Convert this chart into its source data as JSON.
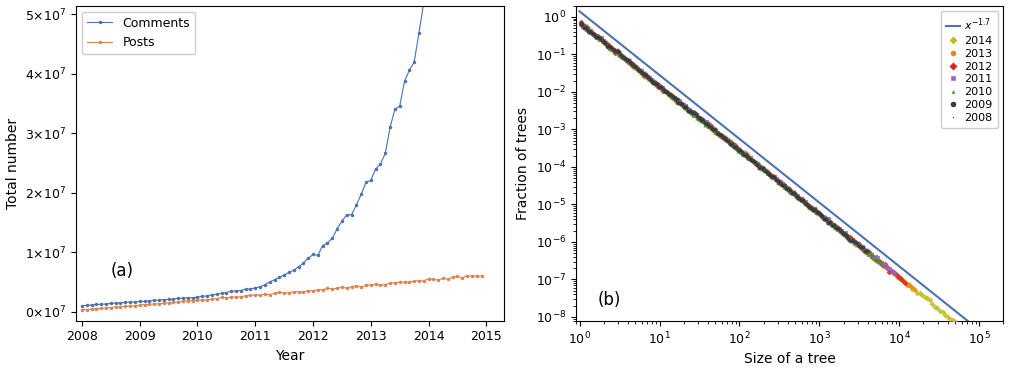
{
  "fig_width": 10.09,
  "fig_height": 3.72,
  "panel_a": {
    "xlabel": "Year",
    "ylabel": "Total number",
    "comments_color": "#4C72B0",
    "posts_color": "#DD8452",
    "label_a": "(a)"
  },
  "panel_b": {
    "xlabel": "Size of a tree",
    "ylabel": "Fraction of trees",
    "power_law_color": "#4C72B0",
    "power_law_label": "$x^{-1.7}$",
    "label_b": "(b)",
    "year_info": [
      {
        "year": 2014,
        "color": "#bcbd22",
        "marker": "D",
        "ms": 3,
        "x_max": 65000
      },
      {
        "year": 2013,
        "color": "#ff7f0e",
        "marker": "o",
        "ms": 3,
        "x_max": 16000
      },
      {
        "year": 2012,
        "color": "#d62728",
        "marker": "D",
        "ms": 3,
        "x_max": 12000
      },
      {
        "year": 2011,
        "color": "#9467bd",
        "marker": "s",
        "ms": 3,
        "x_max": 9000
      },
      {
        "year": 2010,
        "color": "#2ca02c",
        "marker": "^",
        "ms": 3,
        "x_max": 6000
      },
      {
        "year": 2009,
        "color": "#3a3a3a",
        "marker": "o",
        "ms": 3,
        "x_max": 4000
      },
      {
        "year": 2008,
        "color": "#2f2f2f",
        "marker": ".",
        "ms": 2,
        "x_max": 2500
      }
    ]
  }
}
